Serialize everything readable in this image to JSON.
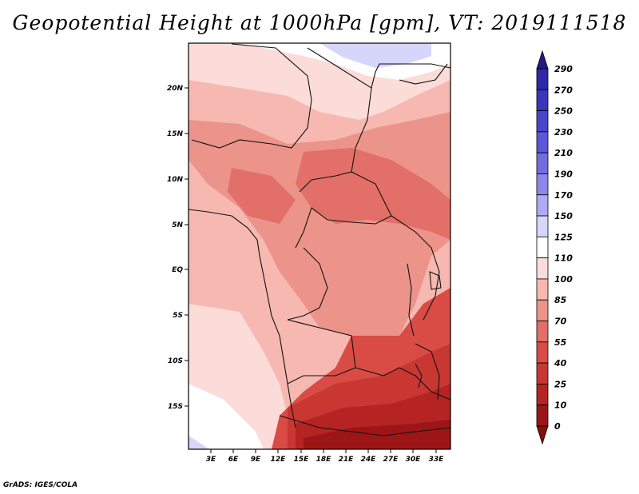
{
  "title": "Geopotential Height at 1000hPa [gpm], VT: 2019111518",
  "credit": "GrADS: IGES/COLA",
  "map": {
    "lat_labels": [
      "20N",
      "15N",
      "10N",
      "5N",
      "EQ",
      "5S",
      "10S",
      "15S"
    ],
    "lon_labels": [
      "3E",
      "6E",
      "9E",
      "12E",
      "15E",
      "18E",
      "21E",
      "24E",
      "27E",
      "30E",
      "33E"
    ]
  },
  "colorbar": {
    "levels": [
      "290",
      "270",
      "250",
      "230",
      "210",
      "190",
      "170",
      "150",
      "125",
      "110",
      "100",
      "85",
      "70",
      "55",
      "40",
      "25",
      "10",
      "0"
    ],
    "colors": [
      "#1f1a86",
      "#2e28a8",
      "#3a35bc",
      "#4a45cc",
      "#5c57d8",
      "#716de0",
      "#8b88ea",
      "#aeabf2",
      "#d6d5fa",
      "#ffffff",
      "#fcdcd8",
      "#f6b8b0",
      "#ec938a",
      "#e27068",
      "#d84c45",
      "#c93733",
      "#b52323",
      "#9c1617",
      "#86100f"
    ]
  }
}
